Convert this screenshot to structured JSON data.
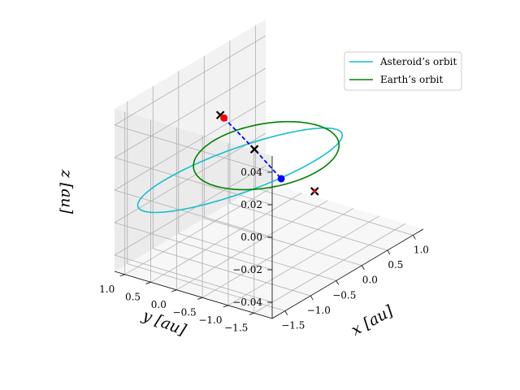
{
  "chart_data": {
    "type": "line",
    "projection": "3d",
    "title": "",
    "xlabel": "$x$ [au]",
    "ylabel": "$y$ [au]",
    "zlabel": "$z$ [au]",
    "xlabel_text": "x [au]",
    "ylabel_text": "y [au]",
    "zlabel_text": "z [au]",
    "xlim": [
      -1.75,
      1.2
    ],
    "ylim": [
      -1.85,
      1.2
    ],
    "zlim": [
      -0.05,
      0.05
    ],
    "xticks": [
      -1.5,
      -1.0,
      -0.5,
      0.0,
      0.5,
      1.0
    ],
    "xtick_labels": [
      "−1.5",
      "−1.0",
      "−0.5",
      "0.0",
      "0.5",
      "1.0"
    ],
    "yticks": [
      -1.5,
      -1.0,
      -0.5,
      0.0,
      0.5,
      1.0
    ],
    "ytick_labels": [
      "−1.5",
      "−1.0",
      "−0.5",
      "0.0",
      "0.5",
      "1.0"
    ],
    "zticks": [
      -0.04,
      -0.02,
      0.0,
      0.02,
      0.04
    ],
    "ztick_labels": [
      "−0.04",
      "−0.02",
      "0.00",
      "0.02",
      "0.04"
    ],
    "grid": true,
    "legend_position": "upper-right",
    "series": [
      {
        "name": "Asteroid's orbit",
        "label": "Asteroid’s orbit",
        "color": "#17becf",
        "orbit": {
          "semi_major_au": 1.45,
          "eccentricity": 0.35,
          "inclination_deg": 1.8,
          "ascending_node_deg": 150,
          "arg_perihelion_deg": 120
        }
      },
      {
        "name": "Earth's orbit",
        "label": "Earth’s orbit",
        "color": "#008000",
        "orbit": {
          "semi_major_au": 1.0,
          "eccentricity": 0.0,
          "inclination_deg": 0.0,
          "ascending_node_deg": 0,
          "arg_perihelion_deg": 0
        }
      }
    ],
    "trajectory": {
      "color": "#0000ff",
      "style": "dashed",
      "points": [
        {
          "x": -0.2,
          "y": 0.62,
          "z": 0.021
        },
        {
          "x": -0.08,
          "y": 0.15,
          "z": 0.004
        },
        {
          "x": 0.02,
          "y": -0.27,
          "z": -0.012
        }
      ]
    },
    "markers": [
      {
        "name": "departure-x-marker",
        "shape": "x",
        "color": "#000000",
        "x": -0.23,
        "y": 0.66,
        "z": 0.023
      },
      {
        "name": "departure-point",
        "shape": "circle",
        "color": "#ff0000",
        "x": -0.2,
        "y": 0.62,
        "z": 0.021
      },
      {
        "name": "earth-crossing-x-marker",
        "shape": "x",
        "color": "#000000",
        "x": -0.08,
        "y": 0.15,
        "z": 0.004
      },
      {
        "name": "arrival-point",
        "shape": "circle",
        "color": "#0000ff",
        "x": 0.02,
        "y": -0.27,
        "z": -0.012
      },
      {
        "name": "arrival-x-marker",
        "shape": "x",
        "color": "#000000",
        "x": 0.32,
        "y": -0.62,
        "z": -0.022
      },
      {
        "name": "arrival-star-marker",
        "shape": "star",
        "color": "#ff0000",
        "x": 0.32,
        "y": -0.62,
        "z": -0.022
      }
    ]
  }
}
